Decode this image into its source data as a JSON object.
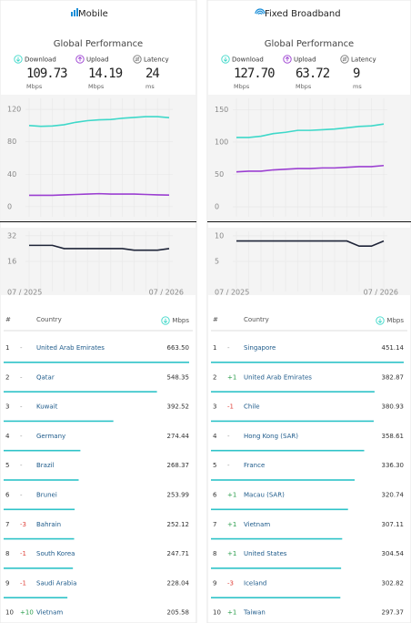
{
  "panels": [
    {
      "title": "Mobile",
      "subtitle": "Global Performance",
      "stats": [
        {
          "label": "Download",
          "value": 109.73,
          "unit": "Mbps"
        },
        {
          "label": "Upload",
          "value": 14.19,
          "unit": "Mbps"
        },
        {
          "label": "Latency",
          "value": 24,
          "unit": "ms"
        }
      ],
      "speed_chart": {
        "type": "line",
        "ylim": [
          -17,
          138
        ],
        "yticks": [
          0,
          40,
          80,
          120
        ],
        "grid": true,
        "series": [
          {
            "name": "Download",
            "color": "#3ed8c9",
            "values": [
              100,
              99,
              99.5,
              101,
              104,
              106,
              107,
              107.5,
              109,
              110,
              111,
              111,
              109.73
            ]
          },
          {
            "name": "Upload",
            "color": "#9b3fd1",
            "values": [
              14,
              14,
              14,
              14.5,
              15,
              15.5,
              16,
              15.5,
              15.5,
              15.5,
              15,
              14.5,
              14.19
            ]
          }
        ]
      },
      "latency_chart": {
        "type": "line",
        "ylim": [
          -5,
          37
        ],
        "yticks": [
          16,
          32
        ],
        "grid": true,
        "categories": [
          "07 / 2025",
          null,
          null,
          null,
          null,
          null,
          null,
          null,
          null,
          null,
          null,
          null,
          "07 / 2026"
        ],
        "series": [
          {
            "name": "Latency",
            "color": "#1e2438",
            "values": [
              26,
              26,
              26,
              24,
              24,
              24,
              24,
              24,
              24,
              23,
              23,
              23,
              24
            ]
          }
        ]
      },
      "table": {
        "headers": [
          "#",
          "Country",
          "Mbps"
        ],
        "rows": [
          [
            1,
            "-",
            "United Arab Emirates",
            "663.50"
          ],
          [
            2,
            "-",
            "Qatar",
            "548.35"
          ],
          [
            3,
            "-",
            "Kuwait",
            "392.52"
          ],
          [
            4,
            "-",
            "Germany",
            "274.44"
          ],
          [
            5,
            "-",
            "Brazil",
            "268.37"
          ],
          [
            6,
            "-",
            "Brunei",
            "253.99"
          ],
          [
            7,
            "-3",
            "Bahrain",
            "252.12"
          ],
          [
            8,
            "-1",
            "South Korea",
            "247.71"
          ],
          [
            9,
            "-1",
            "Saudi Arabia",
            "228.04"
          ],
          [
            10,
            "+10",
            "Vietnam",
            "205.58"
          ]
        ]
      }
    },
    {
      "title": "Fixed Broadband",
      "subtitle": "Global Performance",
      "stats": [
        {
          "label": "Download",
          "value": "127.70",
          "unit": "Mbps"
        },
        {
          "label": "Upload",
          "value": 63.72,
          "unit": "Mbps"
        },
        {
          "label": "Latency",
          "value": 9,
          "unit": "ms"
        }
      ],
      "speed_chart": {
        "type": "line",
        "ylim": [
          -21,
          173
        ],
        "yticks": [
          0,
          50,
          100,
          150
        ],
        "grid": true,
        "series": [
          {
            "name": "Download",
            "color": "#3ed8c9",
            "values": [
              107,
              107,
              109,
              113,
              115,
              118,
              118,
              119,
              120,
              122,
              124,
              125,
              127.7
            ]
          },
          {
            "name": "Upload",
            "color": "#9b3fd1",
            "values": [
              54,
              55,
              55,
              57,
              58,
              59,
              59,
              60,
              60,
              61,
              62,
              62,
              63.72
            ]
          }
        ]
      },
      "latency_chart": {
        "type": "line",
        "ylim": [
          -1.6,
          11.6
        ],
        "yticks": [
          5,
          10
        ],
        "grid": true,
        "categories": [
          "07 / 2025",
          null,
          null,
          null,
          null,
          null,
          null,
          null,
          null,
          null,
          null,
          null,
          "07 / 2026"
        ],
        "series": [
          {
            "name": "Latency",
            "color": "#1e2438",
            "values": [
              9,
              9,
              9,
              9,
              9,
              9,
              9,
              9,
              9,
              9,
              8,
              8,
              9
            ]
          }
        ]
      },
      "table": {
        "headers": [
          "#",
          "Country",
          "Mbps"
        ],
        "rows": [
          [
            1,
            "-",
            "Singapore",
            "451.14"
          ],
          [
            2,
            "+1",
            "United Arab Emirates",
            "382.87"
          ],
          [
            3,
            "-1",
            "Chile",
            "380.93"
          ],
          [
            4,
            "-",
            "Hong Kong (SAR)",
            "358.61"
          ],
          [
            5,
            "-",
            "France",
            "336.30"
          ],
          [
            6,
            "+1",
            "Macau (SAR)",
            "320.74"
          ],
          [
            7,
            "+1",
            "Vietnam",
            "307.11"
          ],
          [
            8,
            "+1",
            "United States",
            "304.54"
          ],
          [
            9,
            "-3",
            "Iceland",
            "302.82"
          ],
          [
            10,
            "+1",
            "Taiwan",
            "297.37"
          ]
        ]
      }
    }
  ]
}
